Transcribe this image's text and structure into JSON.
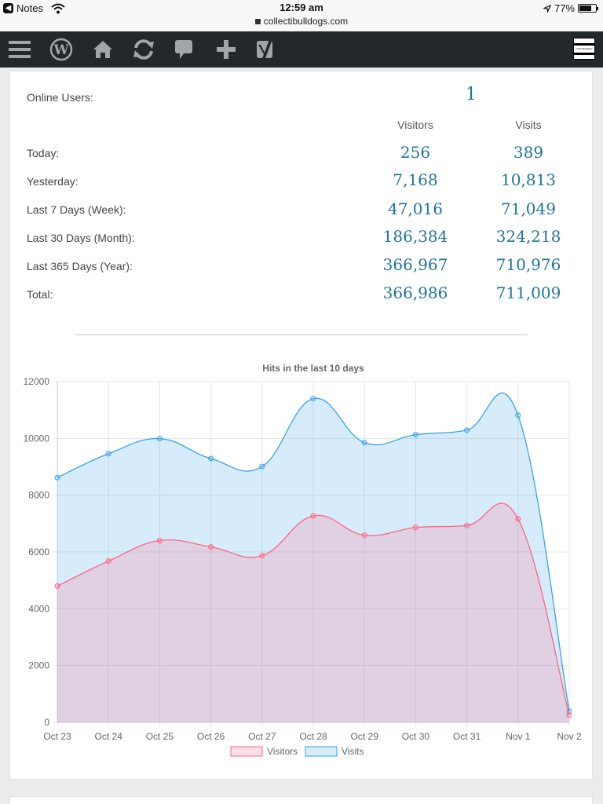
{
  "status_bar": {
    "back_app": "Notes",
    "time": "12:59 am",
    "url": "collectibulldogs.com",
    "battery": "77%",
    "battery_level": 0.77
  },
  "admin_bar": {
    "icons": [
      "menu-icon",
      "wordpress-icon",
      "home-icon",
      "refresh-icon",
      "comment-icon",
      "new-content-icon",
      "yoast-icon"
    ],
    "site_logo_text": "Collectibulldogs"
  },
  "stats": {
    "online_label": "Online Users:",
    "online_value": "1",
    "col_visitors": "Visitors",
    "col_visits": "Visits",
    "rows": [
      {
        "label": "Today:",
        "visitors": "256",
        "visits": "389"
      },
      {
        "label": "Yesterday:",
        "visitors": "7,168",
        "visits": "10,813"
      },
      {
        "label": "Last 7 Days (Week):",
        "visitors": "47,016",
        "visits": "71,049"
      },
      {
        "label": "Last 30 Days (Month):",
        "visitors": "186,384",
        "visits": "324,218"
      },
      {
        "label": "Last 365 Days (Year):",
        "visitors": "366,967",
        "visits": "710,976"
      },
      {
        "label": "Total:",
        "visitors": "366,986",
        "visits": "711,009"
      }
    ]
  },
  "colors": {
    "accent_number": "#21759b",
    "visitors_line": "#ff6384",
    "visitors_fill": "rgba(255,99,132,0.2)",
    "visits_line": "#36a2eb",
    "visits_fill": "rgba(54,162,235,0.2)"
  },
  "chart_data": {
    "type": "area",
    "title": "Hits in the last 10 days",
    "categories": [
      "Oct 23",
      "Oct 24",
      "Oct 25",
      "Oct 26",
      "Oct 27",
      "Oct 28",
      "Oct 29",
      "Oct 30",
      "Oct 31",
      "Nov 1",
      "Nov 2"
    ],
    "series": [
      {
        "name": "Visitors",
        "values": [
          4800,
          5680,
          6400,
          6180,
          5870,
          7270,
          6590,
          6860,
          6930,
          7168,
          256
        ]
      },
      {
        "name": "Visits",
        "values": [
          8620,
          9460,
          9990,
          9290,
          9010,
          11400,
          9850,
          10130,
          10290,
          10813,
          389
        ]
      }
    ],
    "ylim": [
      0,
      12000
    ],
    "yticks": [
      "0",
      "2000",
      "4000",
      "6000",
      "8000",
      "10000",
      "12000"
    ],
    "grid": true,
    "legend": "bottom"
  }
}
